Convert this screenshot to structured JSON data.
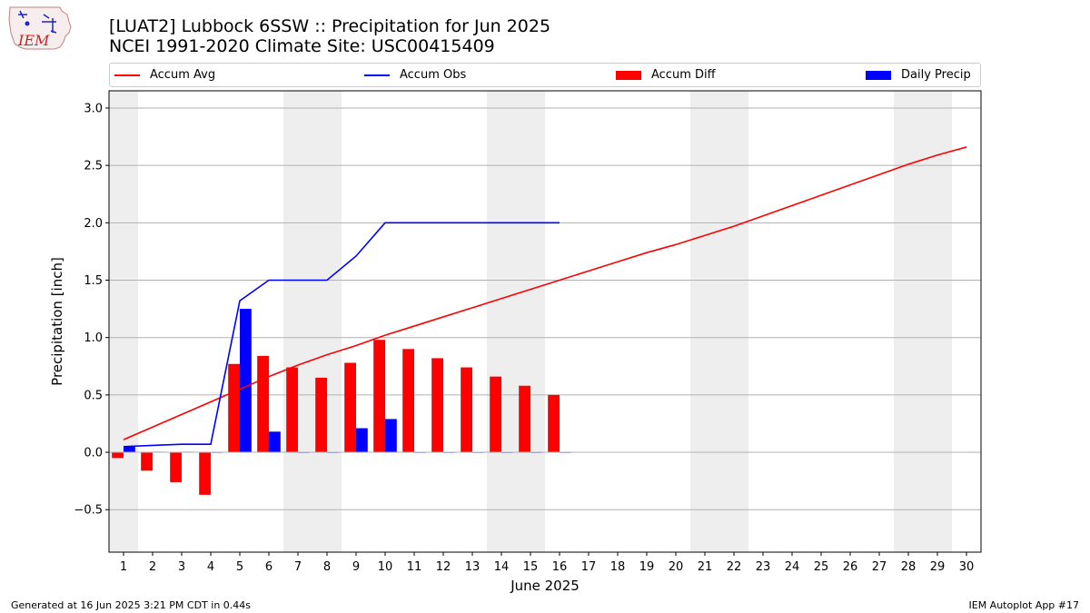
{
  "logo": {
    "text": "IEM"
  },
  "header": {
    "title_line1": "[LUAT2] Lubbock 6SSW :: Precipitation for Jun 2025",
    "title_line2": "NCEI 1991-2020 Climate Site: USC00415409"
  },
  "legend": [
    {
      "label": "Accum Avg",
      "kind": "line",
      "color": "#ff0000"
    },
    {
      "label": "Accum Obs",
      "kind": "line",
      "color": "#0000ff"
    },
    {
      "label": "Accum Diff",
      "kind": "bar",
      "color": "#ff0000"
    },
    {
      "label": "Daily Precip",
      "kind": "bar",
      "color": "#0000ff"
    }
  ],
  "footer": {
    "left": "Generated at 16 Jun 2025 3:21 PM CDT in 0.44s",
    "right": "IEM Autoplot App #17"
  },
  "chart_data": {
    "type": "bar",
    "title": "[LUAT2] Lubbock 6SSW :: Precipitation for Jun 2025",
    "xlabel": "June 2025",
    "ylabel": "Precipitation [inch]",
    "xlim": [
      0.5,
      30.5
    ],
    "ylim": [
      -0.87,
      3.15
    ],
    "x_ticks": [
      1,
      2,
      3,
      4,
      5,
      6,
      7,
      8,
      9,
      10,
      11,
      12,
      13,
      14,
      15,
      16,
      17,
      18,
      19,
      20,
      21,
      22,
      23,
      24,
      25,
      26,
      27,
      28,
      29,
      30
    ],
    "y_ticks": [
      -0.5,
      0.0,
      0.5,
      1.0,
      1.5,
      2.0,
      2.5,
      3.0
    ],
    "y_tick_labels": [
      "−0.5",
      "0.0",
      "0.5",
      "1.0",
      "1.5",
      "2.0",
      "2.5",
      "3.0"
    ],
    "grid": "horizontal",
    "legend_position": "top",
    "weekend_shading": [
      [
        0.5,
        1.5
      ],
      [
        6.5,
        8.5
      ],
      [
        13.5,
        15.5
      ],
      [
        20.5,
        22.5
      ],
      [
        27.5,
        29.5
      ]
    ],
    "series": [
      {
        "name": "Accum Avg",
        "type": "line",
        "color": "#ff0000",
        "x": [
          1,
          2,
          3,
          4,
          5,
          6,
          7,
          8,
          9,
          10,
          11,
          12,
          13,
          14,
          15,
          16,
          17,
          18,
          19,
          20,
          21,
          22,
          23,
          24,
          25,
          26,
          27,
          28,
          29,
          30
        ],
        "values": [
          0.11,
          0.22,
          0.33,
          0.44,
          0.55,
          0.66,
          0.76,
          0.85,
          0.93,
          1.02,
          1.1,
          1.18,
          1.26,
          1.34,
          1.42,
          1.5,
          1.58,
          1.66,
          1.74,
          1.81,
          1.89,
          1.97,
          2.06,
          2.15,
          2.24,
          2.33,
          2.42,
          2.51,
          2.59,
          2.66
        ]
      },
      {
        "name": "Accum Obs",
        "type": "line",
        "color": "#0000ff",
        "x": [
          1,
          2,
          3,
          4,
          5,
          6,
          7,
          8,
          9,
          10,
          11,
          12,
          13,
          14,
          15,
          16
        ],
        "values": [
          0.05,
          0.06,
          0.07,
          0.07,
          1.32,
          1.5,
          1.5,
          1.5,
          1.71,
          2.0,
          2.0,
          2.0,
          2.0,
          2.0,
          2.0,
          2.0
        ]
      },
      {
        "name": "Accum Diff",
        "type": "bar",
        "color": "#ff0000",
        "x": [
          1,
          2,
          3,
          4,
          5,
          6,
          7,
          8,
          9,
          10,
          11,
          12,
          13,
          14,
          15,
          16
        ],
        "values": [
          -0.05,
          -0.16,
          -0.26,
          -0.37,
          0.77,
          0.84,
          0.74,
          0.65,
          0.78,
          0.98,
          0.9,
          0.82,
          0.74,
          0.66,
          0.58,
          0.5
        ]
      },
      {
        "name": "Daily Precip",
        "type": "bar",
        "color": "#0000ff",
        "x": [
          1,
          2,
          3,
          4,
          5,
          6,
          7,
          8,
          9,
          10,
          11,
          12,
          13,
          14,
          15,
          16
        ],
        "values": [
          0.05,
          0.005,
          0.005,
          0.0,
          1.25,
          0.18,
          0.0,
          0.0,
          0.21,
          0.29,
          0.0,
          0.0,
          0.0,
          0.0,
          0.0,
          0.0
        ]
      }
    ]
  }
}
